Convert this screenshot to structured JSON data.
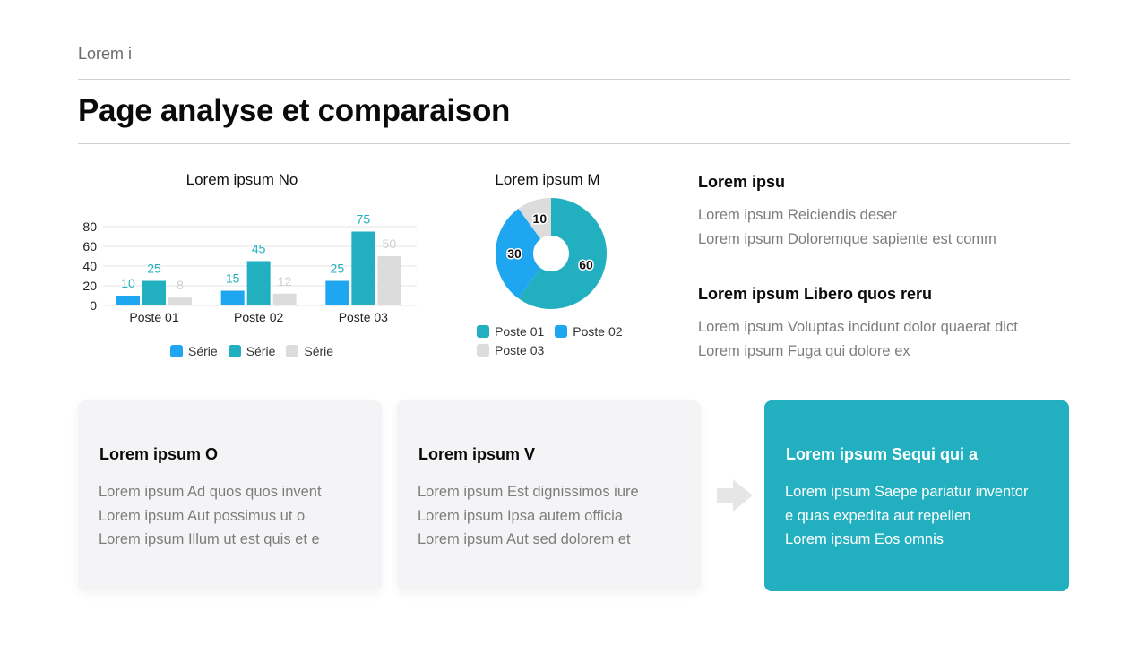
{
  "header": {
    "kicker": "Lorem i",
    "title": "Page analyse et comparaison"
  },
  "colors": {
    "teal": "#22b0c1",
    "blue": "#1ea6f0",
    "gray": "#dcdcdc"
  },
  "chart_data": [
    {
      "type": "bar",
      "title": "Lorem ipsum No",
      "categories": [
        "Poste 01",
        "Poste 02",
        "Poste 03"
      ],
      "series": [
        {
          "name": "Série",
          "color": "#1ea6f0",
          "values": [
            10,
            15,
            25
          ]
        },
        {
          "name": "Série",
          "color": "#22b0c1",
          "values": [
            25,
            45,
            75
          ]
        },
        {
          "name": "Série",
          "color": "#dcdcdc",
          "values": [
            8,
            12,
            50
          ]
        }
      ],
      "yticks": [
        0,
        20,
        40,
        60,
        80
      ],
      "ylim": [
        0,
        80
      ],
      "grid": true,
      "legend": "bottom"
    },
    {
      "type": "pie",
      "donut": true,
      "title": "Lorem ipsum M",
      "slices": [
        {
          "label": "Poste 01",
          "value": 60,
          "color": "#22b0c1"
        },
        {
          "label": "Poste 02",
          "value": 30,
          "color": "#1ea6f0"
        },
        {
          "label": "Poste 03",
          "value": 10,
          "color": "#dcdcdc"
        }
      ],
      "legend": "bottom"
    }
  ],
  "side": {
    "block1": {
      "heading": "Lorem ipsu",
      "lines": [
        "Lorem ipsum Reiciendis deser",
        "Lorem ipsum Doloremque sapiente est comm"
      ]
    },
    "block2": {
      "heading": "Lorem ipsum Libero quos reru",
      "lines": [
        "Lorem ipsum Voluptas incidunt dolor quaerat dict",
        "Lorem ipsum Fuga qui dolore ex"
      ]
    }
  },
  "cards": [
    {
      "heading": "Lorem ipsum O",
      "lines": [
        "Lorem ipsum Ad quos quos invent",
        "Lorem ipsum Aut possimus ut o",
        "Lorem ipsum Illum ut est quis et e"
      ]
    },
    {
      "heading": "Lorem ipsum V",
      "lines": [
        "Lorem ipsum Est dignissimos iure",
        "Lorem ipsum Ipsa autem officia",
        "Lorem ipsum Aut sed dolorem et"
      ]
    },
    {
      "heading": "Lorem ipsum Sequi qui a",
      "lines": [
        "Lorem ipsum Saepe pariatur inventor",
        "e quas expedita aut repellen",
        "Lorem ipsum Eos omnis"
      ]
    }
  ],
  "arrow_icon": "arrow-right-icon"
}
